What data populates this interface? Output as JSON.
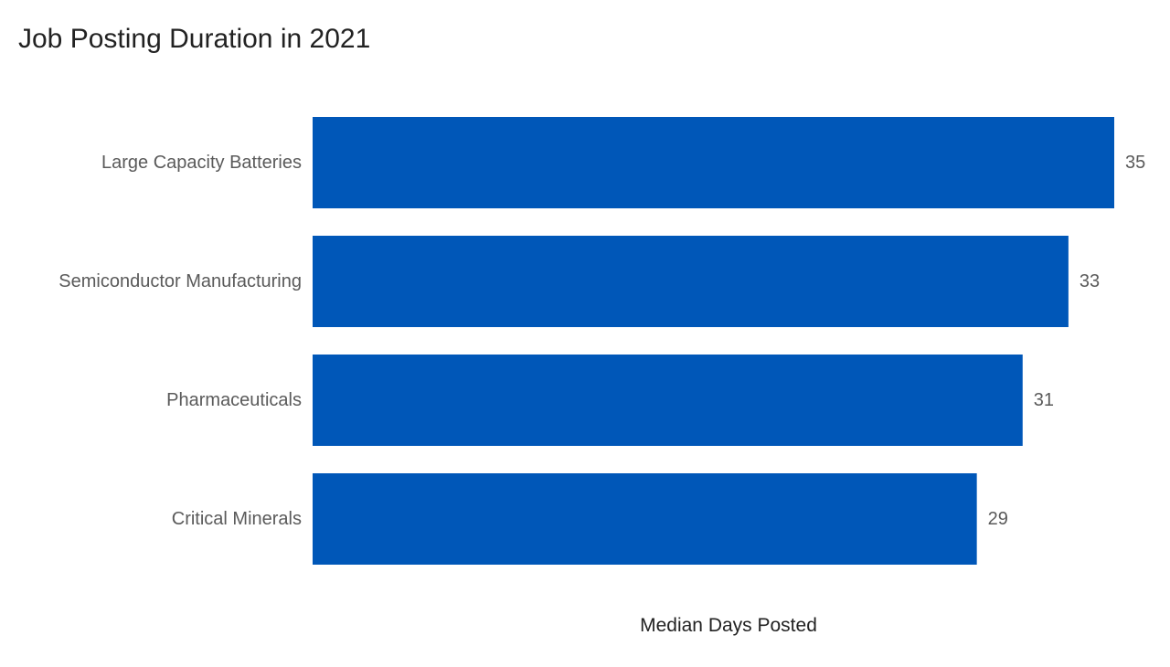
{
  "chart_data": {
    "type": "bar",
    "orientation": "horizontal",
    "title": "Job Posting Duration in 2021",
    "xlabel": "Median Days Posted",
    "ylabel": "",
    "categories": [
      "Large Capacity Batteries",
      "Semiconductor Manufacturing",
      "Pharmaceuticals",
      "Critical Minerals"
    ],
    "values": [
      35,
      33,
      31,
      29
    ],
    "data_labels": [
      "35",
      "33",
      "31",
      "29"
    ],
    "xlim": [
      0,
      35
    ],
    "grid": false,
    "legend": "none",
    "bar_color": "#0057b8"
  }
}
